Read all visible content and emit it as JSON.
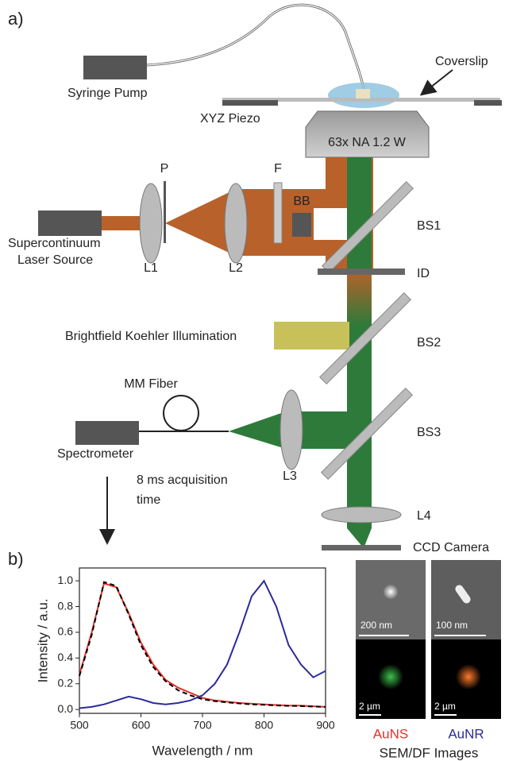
{
  "panel_a": {
    "label": "a)",
    "syringe_pump": "Syringe Pump",
    "coverslip": "Coverslip",
    "piezo": "XYZ Piezo",
    "objective": "63x NA 1.2 W",
    "pinhole": "P",
    "filter": "F",
    "beam_block": "BB",
    "bs1": "BS1",
    "laser_line1": "Supercontinuum",
    "laser_line2": "Laser Source",
    "l1": "L1",
    "l2": "L2",
    "iris": "ID",
    "brightfield": "Brightfield Koehler Illumination",
    "bs2": "BS2",
    "fiber": "MM Fiber",
    "bs3": "BS3",
    "spectrometer": "Spectrometer",
    "l3": "L3",
    "acq_line1": "8 ms acquisition",
    "acq_line2": "time",
    "l4": "L4",
    "camera": "CCD Camera"
  },
  "panel_b_label": "b)",
  "chart_data": {
    "type": "line",
    "xlabel": "Wavelength / nm",
    "ylabel": "Intensity / a.u.",
    "x": [
      500,
      520,
      540,
      560,
      580,
      600,
      620,
      640,
      660,
      680,
      700,
      720,
      740,
      760,
      780,
      800,
      820,
      840,
      860,
      880,
      900
    ],
    "series": [
      {
        "color": "#e8302a",
        "linestyle": "solid",
        "values": [
          0.27,
          0.6,
          0.98,
          0.95,
          0.75,
          0.52,
          0.35,
          0.23,
          0.17,
          0.13,
          0.09,
          0.07,
          0.06,
          0.05,
          0.045,
          0.04,
          0.035,
          0.03,
          0.03,
          0.025,
          0.02
        ]
      },
      {
        "color": "#000000",
        "linestyle": "dashed",
        "values": [
          0.26,
          0.58,
          0.99,
          0.96,
          0.74,
          0.5,
          0.33,
          0.22,
          0.15,
          0.11,
          0.08,
          0.065,
          0.055,
          0.047,
          0.04,
          0.036,
          0.032,
          0.028,
          0.026,
          0.023,
          0.02
        ]
      },
      {
        "color": "#2b2b9a",
        "linestyle": "solid",
        "values": [
          0.01,
          0.02,
          0.04,
          0.07,
          0.1,
          0.08,
          0.05,
          0.04,
          0.05,
          0.07,
          0.11,
          0.2,
          0.35,
          0.6,
          0.88,
          1.0,
          0.8,
          0.5,
          0.35,
          0.25,
          0.3
        ]
      }
    ],
    "xlim": [
      500,
      900
    ],
    "ylim": [
      -0.03,
      1.1
    ],
    "xticks": [
      500,
      600,
      700,
      800,
      900
    ],
    "yticks": [
      {
        "value": 0,
        "label": "0.0"
      },
      0.2,
      0.4,
      0.6,
      0.8,
      {
        "value": 1,
        "label": "1.0"
      }
    ]
  },
  "images": {
    "sem_scale_1": "200 nm",
    "sem_scale_2": "100 nm",
    "df_scale_1": "2 µm",
    "df_scale_2": "2 µm",
    "name_1": "AuNS",
    "name_2": "AuNR",
    "caption": "SEM/DF Images"
  }
}
